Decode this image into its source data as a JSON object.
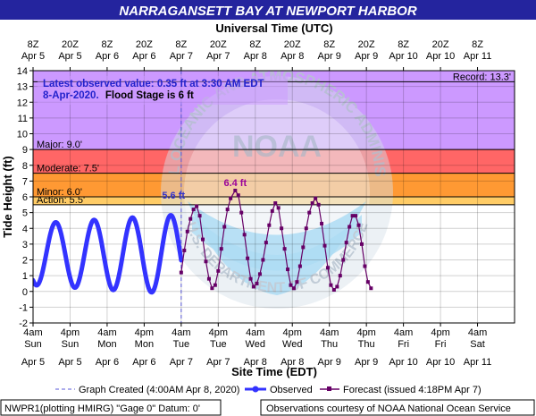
{
  "colors": {
    "header_bg": "#24249e",
    "header_text": "#ffffff",
    "record_band": "#cc99ff",
    "major_band": "#ff6666",
    "moderate_band": "#ff9933",
    "minor_band": "#ffcc66",
    "action_band": "#ffff99",
    "observed": "#3333ff",
    "forecast": "#660066",
    "peak_observed_label": "#3333cc",
    "peak_forecast_label": "#990099",
    "info_text": "#2222cc",
    "watermark": "#c9d6e2",
    "watermark_center": "#9fd6f2"
  },
  "header": {
    "title": "NARRAGANSETT BAY AT NEWPORT HARBOR"
  },
  "chart_data": {
    "type": "line",
    "title": "NARRAGANSETT BAY AT NEWPORT HARBOR",
    "top_axis_label": "Universal Time (UTC)",
    "xlabel": "Site Time (EDT)",
    "ylabel": "Tide Height (ft)",
    "ylim": [
      -2,
      14
    ],
    "y_ticks": [
      -2,
      -1,
      0,
      1,
      2,
      3,
      4,
      5,
      6,
      7,
      8,
      9,
      10,
      11,
      12,
      13,
      14
    ],
    "x_range_hours": [
      0,
      156
    ],
    "x_reference": "Apr 5 4am EDT = hour 0",
    "grid": true,
    "bottom_ticks": [
      {
        "time": "4am",
        "day": "Sun",
        "date": "Apr 5"
      },
      {
        "time": "4pm",
        "day": "Sun",
        "date": "Apr 5"
      },
      {
        "time": "4am",
        "day": "Mon",
        "date": "Apr 6"
      },
      {
        "time": "4pm",
        "day": "Mon",
        "date": "Apr 6"
      },
      {
        "time": "4am",
        "day": "Tue",
        "date": "Apr 7"
      },
      {
        "time": "4pm",
        "day": "Tue",
        "date": "Apr 7"
      },
      {
        "time": "4am",
        "day": "Wed",
        "date": "Apr 8"
      },
      {
        "time": "4pm",
        "day": "Wed",
        "date": "Apr 8"
      },
      {
        "time": "4am",
        "day": "Thu",
        "date": "Apr 9"
      },
      {
        "time": "4pm",
        "day": "Thu",
        "date": "Apr 9"
      },
      {
        "time": "4am",
        "day": "Fri",
        "date": "Apr 10"
      },
      {
        "time": "4pm",
        "day": "Fri",
        "date": "Apr 10"
      },
      {
        "time": "4am",
        "day": "Sat",
        "date": "Apr 11"
      }
    ],
    "top_ticks": [
      {
        "time": "8Z",
        "date": "Apr 5"
      },
      {
        "time": "20Z",
        "date": "Apr 5"
      },
      {
        "time": "8Z",
        "date": "Apr 6"
      },
      {
        "time": "20Z",
        "date": "Apr 6"
      },
      {
        "time": "8Z",
        "date": "Apr 7"
      },
      {
        "time": "20Z",
        "date": "Apr 7"
      },
      {
        "time": "8Z",
        "date": "Apr 8"
      },
      {
        "time": "20Z",
        "date": "Apr 8"
      },
      {
        "time": "8Z",
        "date": "Apr 9"
      },
      {
        "time": "20Z",
        "date": "Apr 9"
      },
      {
        "time": "8Z",
        "date": "Apr 10"
      },
      {
        "time": "20Z",
        "date": "Apr 10"
      },
      {
        "time": "8Z",
        "date": "Apr 11"
      }
    ],
    "flood_categories": [
      {
        "name": "Record",
        "label": "Record: 13.3'",
        "from": 13.3,
        "to": 14,
        "colorKey": "record_band"
      },
      {
        "name": "Major",
        "label": "Major: 9.0'",
        "from": 9.0,
        "to": 13.3,
        "colorKey": "record_band"
      },
      {
        "name": "Moderate",
        "label": "Moderate: 7.5'",
        "from": 7.5,
        "to": 9.0,
        "colorKey": "major_band"
      },
      {
        "name": "Minor",
        "label": "Minor: 6.0'",
        "from": 6.0,
        "to": 7.5,
        "colorKey": "moderate_band"
      },
      {
        "name": "Action",
        "label": "Action: 5.5'",
        "from": 5.5,
        "to": 6.0,
        "colorKey": "action_band"
      }
    ],
    "band_edges": [
      {
        "from": 13.3,
        "to": 14,
        "colorKey": "record_band"
      },
      {
        "from": 9.0,
        "to": 13.3,
        "colorKey": "record_band"
      },
      {
        "from": 7.5,
        "to": 9.0,
        "colorKey": "major_band"
      },
      {
        "from": 6.0,
        "to": 7.5,
        "colorKey": "moderate_band"
      },
      {
        "from": 5.5,
        "to": 6.0,
        "colorKey": "minor_band"
      }
    ],
    "graph_created_hour": 48,
    "observed_series": {
      "name": "Observed",
      "mean": 2.35,
      "amplitude": 1.95,
      "amplitude_growth_per_hour": 0.012,
      "period_hours": 12.42,
      "phase_hour": 44.6,
      "start_hour": 0,
      "end_hour": 48
    },
    "forecast_series": {
      "name": "Forecast (issued 4:18PM Apr 7)",
      "points": [
        [
          48.0,
          1.2
        ],
        [
          49.0,
          2.6
        ],
        [
          50.0,
          3.8
        ],
        [
          51.0,
          4.6
        ],
        [
          52.0,
          5.2
        ],
        [
          53.0,
          5.4
        ],
        [
          54.0,
          4.8
        ],
        [
          55.0,
          3.3
        ],
        [
          56.0,
          1.9
        ],
        [
          57.0,
          0.8
        ],
        [
          58.0,
          0.2
        ],
        [
          59.0,
          0.4
        ],
        [
          60.0,
          1.3
        ],
        [
          61.0,
          2.7
        ],
        [
          62.0,
          4.1
        ],
        [
          63.0,
          5.2
        ],
        [
          64.0,
          5.9
        ],
        [
          65.5,
          6.4
        ],
        [
          66.5,
          6.1
        ],
        [
          67.5,
          5.0
        ],
        [
          68.5,
          3.6
        ],
        [
          69.5,
          2.1
        ],
        [
          70.5,
          0.8
        ],
        [
          71.5,
          0.3
        ],
        [
          72.5,
          0.5
        ],
        [
          73.5,
          1.1
        ],
        [
          74.5,
          2.0
        ],
        [
          75.5,
          3.1
        ],
        [
          76.5,
          4.2
        ],
        [
          77.5,
          5.1
        ],
        [
          78.5,
          5.6
        ],
        [
          79.5,
          5.3
        ],
        [
          80.5,
          4.0
        ],
        [
          81.5,
          2.7
        ],
        [
          82.5,
          1.4
        ],
        [
          83.5,
          0.4
        ],
        [
          84.5,
          0.2
        ],
        [
          85.5,
          0.6
        ],
        [
          86.5,
          1.6
        ],
        [
          87.5,
          2.8
        ],
        [
          88.5,
          4.0
        ],
        [
          89.5,
          5.0
        ],
        [
          90.5,
          5.6
        ],
        [
          91.5,
          5.9
        ],
        [
          92.5,
          5.5
        ],
        [
          93.5,
          4.3
        ],
        [
          94.5,
          2.9
        ],
        [
          95.5,
          1.5
        ],
        [
          96.5,
          0.4
        ],
        [
          97.5,
          0.1
        ],
        [
          98.5,
          0.3
        ],
        [
          99.5,
          1.0
        ],
        [
          100.5,
          2.0
        ],
        [
          101.5,
          3.1
        ],
        [
          102.5,
          4.1
        ],
        [
          103.5,
          4.8
        ],
        [
          104.5,
          4.8
        ],
        [
          105.5,
          4.2
        ],
        [
          106.5,
          3.0
        ],
        [
          107.5,
          1.6
        ],
        [
          108.5,
          0.6
        ],
        [
          109.5,
          0.2
        ]
      ]
    },
    "peaks": [
      {
        "label": "5.6 ft",
        "hour": 45.5,
        "value": 5.6,
        "series": "observed"
      },
      {
        "label": "6.4 ft",
        "hour": 65.5,
        "value": 6.4,
        "series": "forecast"
      }
    ],
    "latest_observation": {
      "line1": "Latest observed value: 0.35 ft at 3:30 AM EDT",
      "line2_date": "8-Apr-2020.",
      "line2_rest": "Flood Stage is 6 ft"
    },
    "watermark": {
      "text": "NATIONAL OCEANIC AND ATMOSPHERIC ADMINISTRATION",
      "text_bottom": "U.S. DEPARTMENT OF COMMERCE",
      "center": "NOAA"
    },
    "legend": {
      "graph_created": "Graph Created (4:00AM Apr 8, 2020)",
      "observed": "Observed",
      "forecast": "Forecast (issued 4:18PM Apr 7)"
    }
  },
  "footer": {
    "left": "NWPR1(plotting HMIRG) \"Gage 0\" Datum:  0'",
    "right": "Observations courtesy of NOAA National Ocean Service"
  }
}
